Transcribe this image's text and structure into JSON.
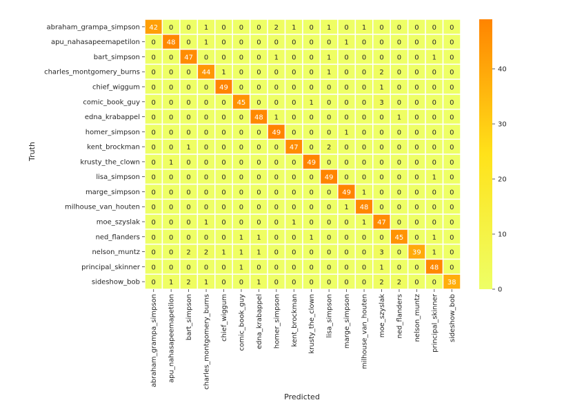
{
  "chart_data": {
    "type": "heatmap",
    "title": "",
    "xlabel": "Predicted",
    "ylabel": "Truth",
    "x_categories": [
      "abraham_grampa_simpson",
      "apu_nahasapeemapetilon",
      "bart_simpson",
      "charles_montgomery_burns",
      "chief_wiggum",
      "comic_book_guy",
      "edna_krabappel",
      "homer_simpson",
      "kent_brockman",
      "krusty_the_clown",
      "lisa_simpson",
      "marge_simpson",
      "milhouse_van_houten",
      "moe_szyslak",
      "ned_flanders",
      "nelson_muntz",
      "principal_skinner",
      "sideshow_bob"
    ],
    "y_categories": [
      "abraham_grampa_simpson",
      "apu_nahasapeemapetilon",
      "bart_simpson",
      "charles_montgomery_burns",
      "chief_wiggum",
      "comic_book_guy",
      "edna_krabappel",
      "homer_simpson",
      "kent_brockman",
      "krusty_the_clown",
      "lisa_simpson",
      "marge_simpson",
      "milhouse_van_houten",
      "moe_szyslak",
      "ned_flanders",
      "nelson_muntz",
      "principal_skinner",
      "sideshow_bob"
    ],
    "values": [
      [
        42,
        0,
        0,
        1,
        0,
        0,
        0,
        2,
        1,
        0,
        1,
        0,
        1,
        0,
        0,
        0,
        0,
        0
      ],
      [
        0,
        48,
        0,
        1,
        0,
        0,
        0,
        0,
        0,
        0,
        0,
        1,
        0,
        0,
        0,
        0,
        0,
        0
      ],
      [
        0,
        0,
        47,
        0,
        0,
        0,
        0,
        1,
        0,
        0,
        1,
        0,
        0,
        0,
        0,
        0,
        1,
        0
      ],
      [
        0,
        0,
        0,
        44,
        1,
        0,
        0,
        0,
        0,
        0,
        1,
        0,
        0,
        2,
        0,
        0,
        0,
        0
      ],
      [
        0,
        0,
        0,
        0,
        49,
        0,
        0,
        0,
        0,
        0,
        0,
        0,
        0,
        1,
        0,
        0,
        0,
        0
      ],
      [
        0,
        0,
        0,
        0,
        0,
        45,
        0,
        0,
        0,
        1,
        0,
        0,
        0,
        3,
        0,
        0,
        0,
        0
      ],
      [
        0,
        0,
        0,
        0,
        0,
        0,
        48,
        1,
        0,
        0,
        0,
        0,
        0,
        0,
        1,
        0,
        0,
        0
      ],
      [
        0,
        0,
        0,
        0,
        0,
        0,
        0,
        49,
        0,
        0,
        0,
        1,
        0,
        0,
        0,
        0,
        0,
        0
      ],
      [
        0,
        0,
        1,
        0,
        0,
        0,
        0,
        0,
        47,
        0,
        2,
        0,
        0,
        0,
        0,
        0,
        0,
        0
      ],
      [
        0,
        1,
        0,
        0,
        0,
        0,
        0,
        0,
        0,
        49,
        0,
        0,
        0,
        0,
        0,
        0,
        0,
        0
      ],
      [
        0,
        0,
        0,
        0,
        0,
        0,
        0,
        0,
        0,
        0,
        49,
        0,
        0,
        0,
        0,
        0,
        1,
        0
      ],
      [
        0,
        0,
        0,
        0,
        0,
        0,
        0,
        0,
        0,
        0,
        0,
        49,
        1,
        0,
        0,
        0,
        0,
        0
      ],
      [
        0,
        0,
        0,
        0,
        0,
        0,
        0,
        0,
        0,
        0,
        0,
        1,
        48,
        0,
        0,
        0,
        0,
        0
      ],
      [
        0,
        0,
        0,
        1,
        0,
        0,
        0,
        0,
        1,
        0,
        0,
        0,
        1,
        47,
        0,
        0,
        0,
        0
      ],
      [
        0,
        0,
        0,
        0,
        0,
        1,
        1,
        0,
        0,
        1,
        0,
        0,
        0,
        0,
        45,
        0,
        1,
        0
      ],
      [
        0,
        0,
        2,
        2,
        1,
        1,
        1,
        0,
        0,
        0,
        0,
        0,
        0,
        3,
        0,
        39,
        1,
        0
      ],
      [
        0,
        0,
        0,
        0,
        0,
        1,
        0,
        0,
        0,
        0,
        0,
        0,
        0,
        1,
        0,
        0,
        48,
        0
      ],
      [
        0,
        1,
        2,
        1,
        0,
        0,
        1,
        0,
        0,
        0,
        0,
        0,
        0,
        2,
        2,
        0,
        0,
        38
      ]
    ],
    "colorbar": {
      "ticks": [
        0,
        10,
        20,
        30,
        40
      ],
      "min": 0,
      "max": 49,
      "colors": [
        "#eeff66",
        "#ffe21a",
        "#ff8400"
      ]
    },
    "grid": true,
    "legend": "right"
  }
}
